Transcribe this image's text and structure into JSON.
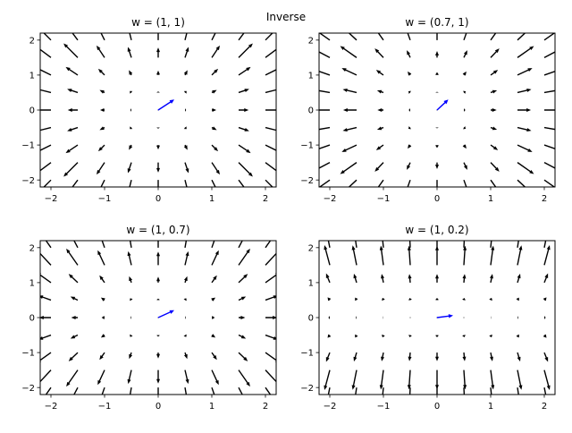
{
  "figure": {
    "suptitle": "Inverse"
  },
  "chart_data": [
    {
      "type": "quiver",
      "title": "w = (1, 1)",
      "w": [
        1,
        1
      ],
      "xlim": [
        -2.2,
        2.2
      ],
      "ylim": [
        -2.2,
        2.2
      ],
      "xticks": [
        -2,
        -1,
        0,
        1,
        2
      ],
      "yticks": [
        -2,
        -1,
        0,
        1,
        2
      ],
      "grid_x": [
        -2,
        -1.5,
        -1,
        -0.5,
        0,
        0.5,
        1,
        1.5,
        2
      ],
      "grid_y": [
        -2,
        -1.5,
        -1,
        -0.5,
        0,
        0.5,
        1,
        1.5,
        2
      ],
      "field_color": "#000000",
      "w_color": "#0000ff"
    },
    {
      "type": "quiver",
      "title": "w = (0.7, 1)",
      "w": [
        0.7,
        1
      ],
      "xlim": [
        -2.2,
        2.2
      ],
      "ylim": [
        -2.2,
        2.2
      ],
      "xticks": [
        -2,
        -1,
        0,
        1,
        2
      ],
      "yticks": [
        -2,
        -1,
        0,
        1,
        2
      ],
      "grid_x": [
        -2,
        -1.5,
        -1,
        -0.5,
        0,
        0.5,
        1,
        1.5,
        2
      ],
      "grid_y": [
        -2,
        -1.5,
        -1,
        -0.5,
        0,
        0.5,
        1,
        1.5,
        2
      ],
      "field_color": "#000000",
      "w_color": "#0000ff"
    },
    {
      "type": "quiver",
      "title": "w = (1, 0.7)",
      "w": [
        1,
        0.7
      ],
      "xlim": [
        -2.2,
        2.2
      ],
      "ylim": [
        -2.2,
        2.2
      ],
      "xticks": [
        -2,
        -1,
        0,
        1,
        2
      ],
      "yticks": [
        -2,
        -1,
        0,
        1,
        2
      ],
      "grid_x": [
        -2,
        -1.5,
        -1,
        -0.5,
        0,
        0.5,
        1,
        1.5,
        2
      ],
      "grid_y": [
        -2,
        -1.5,
        -1,
        -0.5,
        0,
        0.5,
        1,
        1.5,
        2
      ],
      "field_color": "#000000",
      "w_color": "#0000ff"
    },
    {
      "type": "quiver",
      "title": "w = (1, 0.2)",
      "w": [
        1,
        0.2
      ],
      "xlim": [
        -2.2,
        2.2
      ],
      "ylim": [
        -2.2,
        2.2
      ],
      "xticks": [
        -2,
        -1,
        0,
        1,
        2
      ],
      "yticks": [
        -2,
        -1,
        0,
        1,
        2
      ],
      "grid_x": [
        -2,
        -1.5,
        -1,
        -0.5,
        0,
        0.5,
        1,
        1.5,
        2
      ],
      "grid_y": [
        -2,
        -1.5,
        -1,
        -0.5,
        0,
        0.5,
        1,
        1.5,
        2
      ],
      "field_color": "#000000",
      "w_color": "#0000ff"
    }
  ]
}
